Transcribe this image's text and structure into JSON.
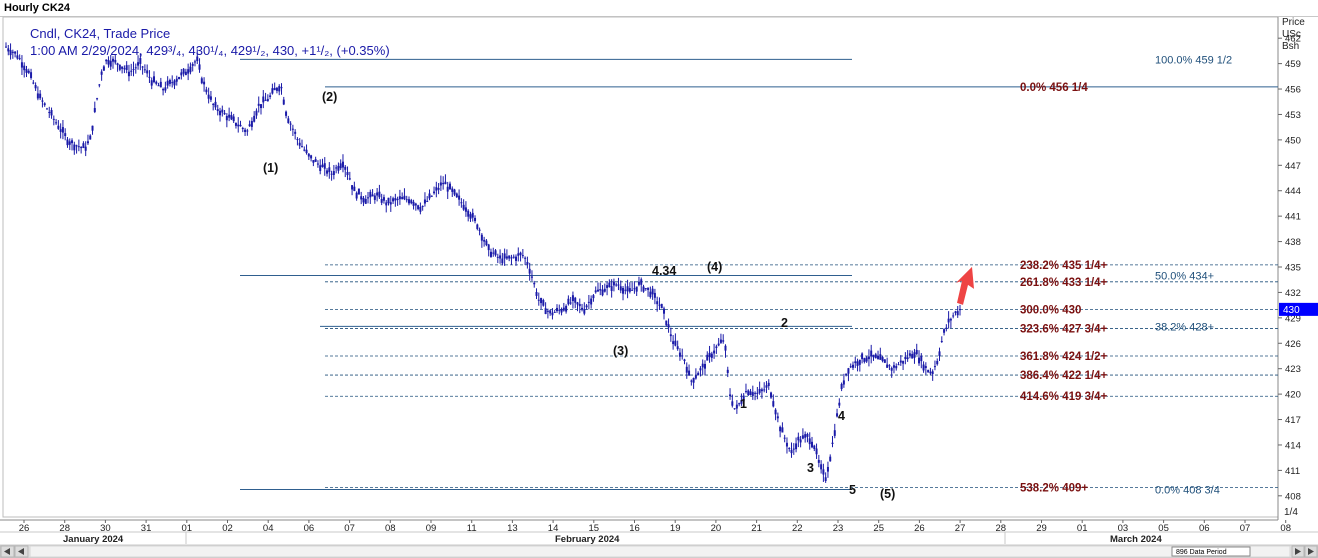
{
  "window_title": "Hourly CK24",
  "header": {
    "line1": "Cndl, CK24, Trade Price",
    "line2": "1:00 AM 2/29/2024, 429³/₄, 430¹/₄, 429¹/₂, 430, +1¹/₂, (+0.35%)"
  },
  "axis": {
    "unit_lines": [
      "Price",
      "USc",
      "Bsh"
    ],
    "corner_label": "1/4",
    "current_price_marker": "430"
  },
  "status": {
    "data_period": "896 Data Period"
  },
  "colors": {
    "candle": "#1a1aa8",
    "fib_dark_red": "#7a1010",
    "fib_blue": "#1f4f7a",
    "ref_line": "#2f5f8f",
    "arrow": "#ee4444",
    "price_marker_bg": "#0000ff"
  },
  "chart_data": {
    "type": "candlestick",
    "symbol": "CK24",
    "interval": "Hourly",
    "ylim": [
      405.5,
      464.5
    ],
    "yticks": [
      408,
      411,
      414,
      417,
      420,
      423,
      426,
      429,
      432,
      435,
      438,
      441,
      444,
      447,
      450,
      453,
      456,
      459,
      462
    ],
    "x_day_labels": [
      "26",
      "28",
      "30",
      "31",
      "01",
      "02",
      "04",
      "06",
      "07",
      "08",
      "09",
      "11",
      "13",
      "14",
      "15",
      "16",
      "19",
      "20",
      "21",
      "22",
      "23",
      "25",
      "26",
      "27",
      "28",
      "29",
      "01",
      "03",
      "05",
      "06",
      "07",
      "08",
      "10"
    ],
    "month_labels": [
      "January 2024",
      "February 2024",
      "March 2024"
    ],
    "close_path": [
      [
        0,
        461
      ],
      [
        2,
        460
      ],
      [
        4,
        458
      ],
      [
        6,
        455
      ],
      [
        8,
        453
      ],
      [
        10,
        451
      ],
      [
        11,
        450
      ],
      [
        12,
        449.5
      ],
      [
        14,
        449
      ],
      [
        15,
        450
      ],
      [
        16,
        454
      ],
      [
        17,
        458
      ],
      [
        18,
        459.5
      ],
      [
        20,
        459
      ],
      [
        22,
        458
      ],
      [
        24,
        459
      ],
      [
        26,
        457
      ],
      [
        28,
        456
      ],
      [
        30,
        457
      ],
      [
        32,
        458
      ],
      [
        34,
        459.5
      ],
      [
        35,
        457
      ],
      [
        37,
        454
      ],
      [
        39,
        453
      ],
      [
        41,
        452
      ],
      [
        43,
        451
      ],
      [
        45,
        454
      ],
      [
        47,
        455
      ],
      [
        48,
        456
      ],
      [
        49,
        456.5
      ],
      [
        50,
        453
      ],
      [
        52,
        450
      ],
      [
        54,
        448
      ],
      [
        56,
        447
      ],
      [
        58,
        446
      ],
      [
        60,
        447.5
      ],
      [
        61,
        446
      ],
      [
        62,
        444
      ],
      [
        64,
        443
      ],
      [
        66,
        443.5
      ],
      [
        68,
        442.5
      ],
      [
        70,
        443
      ],
      [
        72,
        443
      ],
      [
        74,
        442
      ],
      [
        76,
        443.5
      ],
      [
        78,
        445
      ],
      [
        80,
        443.5
      ],
      [
        82,
        442
      ],
      [
        84,
        440
      ],
      [
        86,
        437
      ],
      [
        88,
        436
      ],
      [
        90,
        436
      ],
      [
        92,
        436.5
      ],
      [
        93,
        435.5
      ],
      [
        95,
        431
      ],
      [
        97,
        429.5
      ],
      [
        99,
        430
      ],
      [
        101,
        431
      ],
      [
        103,
        430
      ],
      [
        105,
        432
      ],
      [
        107,
        432.5
      ],
      [
        109,
        433
      ],
      [
        111,
        432
      ],
      [
        113,
        433
      ],
      [
        115,
        432
      ],
      [
        117,
        430
      ],
      [
        119,
        426
      ],
      [
        121,
        424
      ],
      [
        122,
        421.5
      ],
      [
        124,
        423
      ],
      [
        126,
        425
      ],
      [
        128,
        426.5
      ],
      [
        129,
        420
      ],
      [
        130,
        418
      ],
      [
        132,
        420.5
      ],
      [
        134,
        420
      ],
      [
        136,
        421
      ],
      [
        138,
        416
      ],
      [
        140,
        413
      ],
      [
        141,
        414.5
      ],
      [
        143,
        415
      ],
      [
        144,
        414
      ],
      [
        145,
        411.5
      ],
      [
        146,
        410
      ],
      [
        147,
        413
      ],
      [
        148,
        417
      ],
      [
        149,
        421
      ],
      [
        150,
        423
      ],
      [
        152,
        424
      ],
      [
        154,
        424.5
      ],
      [
        156,
        424
      ],
      [
        158,
        423
      ],
      [
        160,
        424
      ],
      [
        162,
        425
      ],
      [
        164,
        423
      ],
      [
        165,
        422.5
      ],
      [
        166,
        424
      ],
      [
        167,
        427
      ],
      [
        168,
        428.5
      ],
      [
        169,
        429.5
      ],
      [
        170,
        430
      ]
    ],
    "fibonacci_levels": [
      {
        "pct": "0.0%",
        "price_label": "456 1/4",
        "price": 456.25
      },
      {
        "pct": "238.2%",
        "price_label": "435 1/4+",
        "price": 435.25
      },
      {
        "pct": "261.8%",
        "price_label": "433 1/4+",
        "price": 433.25
      },
      {
        "pct": "300.0%",
        "price_label": "430",
        "price": 430
      },
      {
        "pct": "323.6%",
        "price_label": "427 3/4+",
        "price": 427.75
      },
      {
        "pct": "361.8%",
        "price_label": "424 1/2+",
        "price": 424.5
      },
      {
        "pct": "386.4%",
        "price_label": "422 1/4+",
        "price": 422.25
      },
      {
        "pct": "414.6%",
        "price_label": "419 3/4+",
        "price": 419.75
      },
      {
        "pct": "538.2%",
        "price_label": "409+",
        "price": 409
      }
    ],
    "retracement_levels": [
      {
        "pct": "100.0%",
        "price_label": "459 1/2",
        "price": 459.5
      },
      {
        "pct": "50.0%",
        "price_label": "434+",
        "price": 434
      },
      {
        "pct": "38.2%",
        "price_label": "428+",
        "price": 428
      },
      {
        "pct": "0.0%",
        "price_label": "408 3/4",
        "price": 408.75
      }
    ],
    "wave_labels": [
      "(1)",
      "(2)",
      "(3)",
      "4.34",
      "(4)",
      "1",
      "2",
      "3",
      "4",
      "5",
      "(5)"
    ],
    "annotation_arrow": {
      "direction": "up",
      "target_price": 435.25
    },
    "grid": false
  }
}
